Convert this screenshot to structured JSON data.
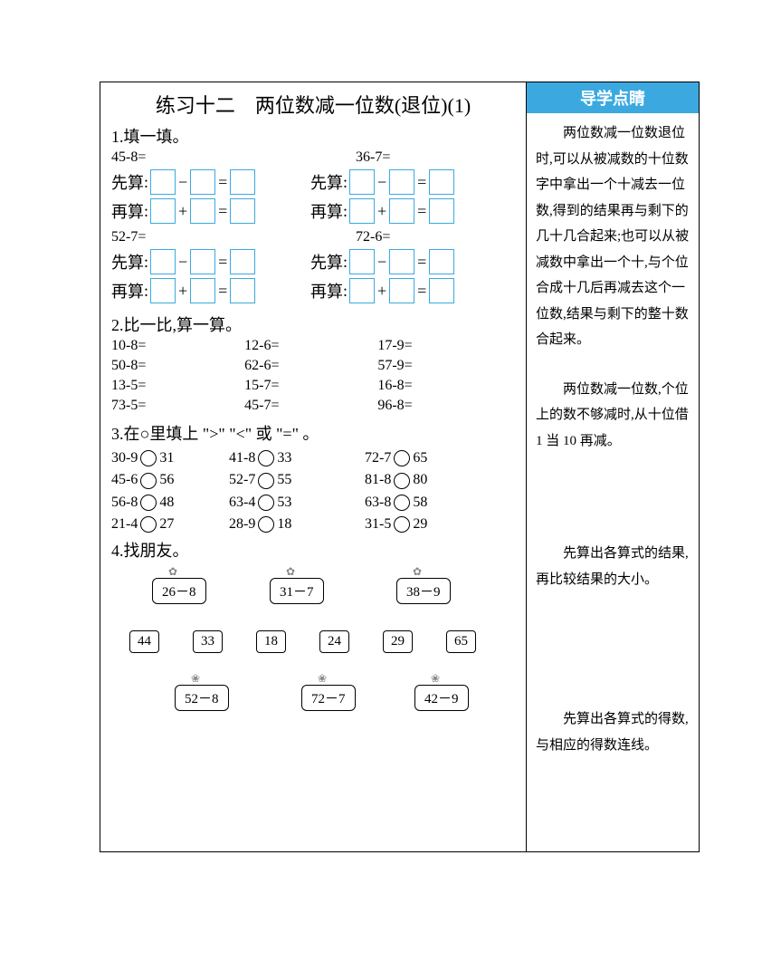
{
  "title": "练习十二　两位数减一位数(退位)(1)",
  "side": {
    "banner": "导学点睛",
    "p1": "　　两位数减一位数退位时,可以从被减数的十位数字中拿出一个十减去一位数,得到的结果再与剩下的几十几合起来;也可以从被减数中拿出一个十,与个位合成十几后再减去这个一位数,结果与剩下的整十数合起来。",
    "p2": "　　两位数减一位数,个位上的数不够减时,从十位借 1 当 10 再减。",
    "p3": "　　先算出各算式的结果,再比较结果的大小。",
    "p4": "　　先算出各算式的得数,与相应的得数连线。"
  },
  "s1": {
    "h": "1.填一填。",
    "xian": "先算",
    "zai": "再算",
    "items": [
      {
        "q": "45-8=",
        "qr": "36-7="
      },
      {
        "q": "52-7=",
        "qr": "72-6="
      }
    ]
  },
  "s2": {
    "h": "2.比一比,算一算。",
    "cells": [
      "10-8=",
      "12-6=",
      "17-9=",
      "50-8=",
      "62-6=",
      "57-9=",
      "13-5=",
      "15-7=",
      "16-8=",
      "73-5=",
      "45-7=",
      "96-8="
    ]
  },
  "s3": {
    "h": "3.在○里填上 \">\" \"<\" 或 \"=\" 。",
    "rows": [
      [
        "30-9",
        "31",
        "41-8",
        "33",
        "72-7",
        "65"
      ],
      [
        "45-6",
        "56",
        "52-7",
        "55",
        "81-8",
        "80"
      ],
      [
        "56-8",
        "48",
        "63-4",
        "53",
        "63-8",
        "58"
      ],
      [
        "21-4",
        "27",
        "28-9",
        "18",
        "31-5",
        "29"
      ]
    ]
  },
  "s4": {
    "h": "4.找朋友。",
    "top": [
      "26－8",
      "31－7",
      "38－9"
    ],
    "mid": [
      "44",
      "33",
      "18",
      "24",
      "29",
      "65"
    ],
    "bot": [
      "52－8",
      "72－7",
      "42－9"
    ]
  }
}
